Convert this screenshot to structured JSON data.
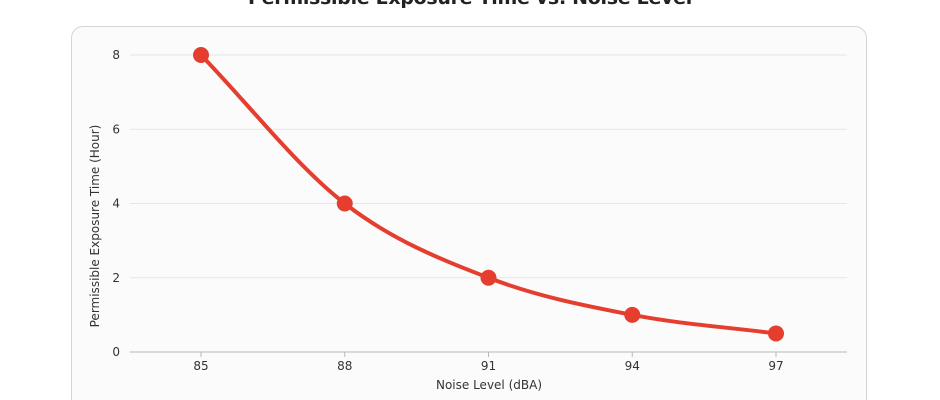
{
  "chart_data": {
    "type": "line",
    "title": "Permissible Exposure Time vs. Noise Level",
    "xlabel": "Noise Level (dBA)",
    "ylabel": "Permissible Exposure Time (Hour)",
    "categories": [
      "85",
      "88",
      "91",
      "94",
      "97"
    ],
    "x": [
      85,
      88,
      91,
      94,
      97
    ],
    "yticks": [
      "0",
      "2",
      "4",
      "6",
      "8"
    ],
    "ylim": [
      0,
      8
    ],
    "grid": true,
    "series": [
      {
        "values": [
          8,
          4,
          2,
          1,
          0.5
        ],
        "color": "#e53e2e"
      }
    ]
  }
}
